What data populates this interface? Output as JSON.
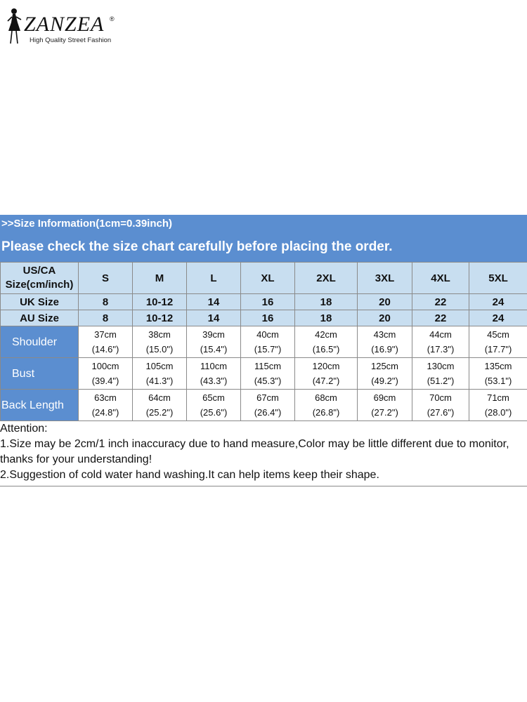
{
  "brand": {
    "name": "ZANZEA",
    "registered": "®",
    "tagline": "High Quality Street Fashion"
  },
  "header": {
    "info": ">>Size Information(1cm=0.39inch)",
    "notice": "Please check the size chart carefully before placing the order."
  },
  "table": {
    "corner_line1": "US/CA",
    "corner_line2": "Size(cm/inch)",
    "sizes": [
      "S",
      "M",
      "L",
      "XL",
      "2XL",
      "3XL",
      "4XL",
      "5XL"
    ],
    "uk_label": "UK Size",
    "uk": [
      "8",
      "10-12",
      "14",
      "16",
      "18",
      "20",
      "22",
      "24"
    ],
    "au_label": "AU Size",
    "au": [
      "8",
      "10-12",
      "14",
      "16",
      "18",
      "20",
      "22",
      "24"
    ],
    "measurements": [
      {
        "label": "Shoulder",
        "cm": [
          "37cm",
          "38cm",
          "39cm",
          "40cm",
          "42cm",
          "43cm",
          "44cm",
          "45cm"
        ],
        "inch": [
          "(14.6\")",
          "(15.0\")",
          "(15.4\")",
          "(15.7\")",
          "(16.5\")",
          "(16.9\")",
          "(17.3\")",
          "(17.7\")"
        ]
      },
      {
        "label": "Bust",
        "cm": [
          "100cm",
          "105cm",
          "110cm",
          "115cm",
          "120cm",
          "125cm",
          "130cm",
          "135cm"
        ],
        "inch": [
          "(39.4\")",
          "(41.3\")",
          "(43.3\")",
          "(45.3\")",
          "(47.2\")",
          "(49.2\")",
          "(51.2\")",
          "(53.1\")"
        ]
      },
      {
        "label": "Back Length",
        "cm": [
          "63cm",
          "64cm",
          "65cm",
          "67cm",
          "68cm",
          "69cm",
          "70cm",
          "71cm"
        ],
        "inch": [
          "(24.8\")",
          "(25.2\")",
          "(25.6\")",
          "(26.4\")",
          "(26.8\")",
          "(27.2\")",
          "(27.6\")",
          "(28.0\")"
        ]
      }
    ]
  },
  "notes": {
    "title": "Attention:",
    "line1": "1.Size may be 2cm/1 inch inaccuracy due to hand measure,Color may be little different due to monitor,",
    "line2": "thanks for your understanding!",
    "line3": "2.Suggestion of cold water hand washing.It can help items keep their shape."
  },
  "colors": {
    "header_bar": "#5b8ed0",
    "light_cell": "#c8def0",
    "text_white": "#ffffff"
  }
}
